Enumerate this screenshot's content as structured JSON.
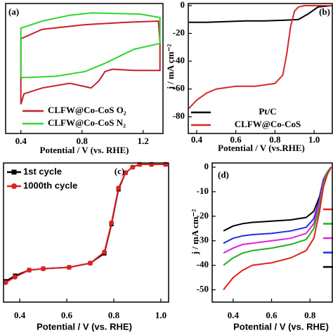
{
  "chart_data": [
    {
      "type": "line",
      "panel_label": "(a)",
      "x_label": "Potential / V (vs. RHE)",
      "xlim": [
        0.3,
        1.33
      ],
      "ylim": [
        -10.8,
        100
      ],
      "xticks": [
        0.4,
        0.8,
        1.2
      ],
      "series": [
        {
          "name": "CLFW@Co-CoS O₂",
          "color": "#c8202a",
          "x": [
            0.4,
            0.4,
            0.4,
            0.54,
            0.82,
            1.09,
            1.3,
            1.31,
            1.31,
            1.14,
            1.0,
            0.95,
            0.91,
            0.86,
            0.79,
            0.72,
            0.54,
            0.42,
            0.4
          ],
          "values": [
            14,
            43,
            70,
            78,
            82,
            84,
            85,
            67,
            43,
            43,
            44,
            42,
            34,
            28,
            30,
            32,
            28,
            23,
            14
          ]
        },
        {
          "name": "CLFW@Co-CoS N₂",
          "color": "#2fd62f",
          "x": [
            0.4,
            0.4,
            0.54,
            0.72,
            0.86,
            1.18,
            1.31,
            1.31,
            1.14,
            0.95,
            0.82,
            0.63,
            0.45,
            0.4
          ],
          "values": [
            37,
            79,
            85,
            90,
            92,
            91,
            88,
            66,
            61,
            49,
            42,
            38,
            37,
            37
          ]
        }
      ]
    },
    {
      "type": "line",
      "panel_label": "(b)",
      "x_label": "Potential / V (vs.RHE)",
      "y_label": "j / mA cm⁻²",
      "xlim": [
        0.357,
        1.093
      ],
      "ylim": [
        -92,
        1.5
      ],
      "xticks": [
        0.4,
        0.6,
        0.8,
        {
          "value": 1,
          "label": "1.0"
        }
      ],
      "yticks": [
        0,
        -20,
        -40,
        -60,
        -80
      ],
      "series": [
        {
          "name": "Pt/C",
          "color": "#000000",
          "x": [
            0.36,
            0.45,
            0.55,
            0.65,
            0.75,
            0.85,
            0.92,
            0.97,
            1.02,
            1.09
          ],
          "values": [
            -12,
            -12,
            -11.5,
            -11,
            -11,
            -10.5,
            -10,
            -6,
            -1,
            0
          ]
        },
        {
          "name": "CLFW@Co-CoS",
          "color": "#d42a2a",
          "x": [
            0.36,
            0.4,
            0.45,
            0.5,
            0.6,
            0.7,
            0.8,
            0.84,
            0.86,
            0.88,
            0.9,
            0.92,
            0.95,
            1.0,
            1.09
          ],
          "values": [
            -74,
            -68,
            -63,
            -60,
            -58,
            -58,
            -56,
            -50,
            -35,
            -15,
            -4,
            -1,
            0,
            0,
            0
          ]
        }
      ]
    },
    {
      "type": "line",
      "panel_label": "(c)",
      "x_label": "Potential / V (vs. RHE)",
      "xlim": [
        0.331,
        1.033
      ],
      "ylim": [
        0,
        100
      ],
      "xticks": [
        0.4,
        0.6,
        0.8,
        {
          "value": 1,
          "label": "1.0"
        }
      ],
      "x": [
        0.34,
        0.38,
        0.44,
        0.5,
        0.61,
        0.7,
        0.76,
        0.79,
        0.82,
        0.85,
        0.88,
        0.91,
        0.96,
        1.02
      ],
      "series": [
        {
          "name": "1st cycle",
          "color": "#000000",
          "marker": "square",
          "values": [
            15,
            19,
            23,
            24,
            25,
            28,
            35,
            56,
            81,
            93,
            97,
            99,
            99,
            99
          ]
        },
        {
          "name": "1000th cycle",
          "color": "#e02020",
          "marker": "circle",
          "values": [
            14,
            18,
            23,
            24,
            25,
            28,
            36,
            57,
            82,
            93,
            97,
            99,
            99,
            99
          ]
        }
      ]
    },
    {
      "type": "line",
      "panel_label": "(d)",
      "x_label": "Potential / V (vs. RHE)",
      "y_label": "j / mA cm⁻²",
      "xlim": [
        0.291,
        0.916
      ],
      "ylim": [
        -55,
        1.7
      ],
      "xticks": [
        0.4,
        0.6,
        0.8
      ],
      "yticks": [
        0,
        -10,
        -20,
        -30,
        -40,
        -50
      ],
      "x": [
        0.35,
        0.4,
        0.45,
        0.5,
        0.6,
        0.7,
        0.78,
        0.82,
        0.85,
        0.87,
        0.89,
        0.91
      ],
      "series": [
        {
          "color": "#000000",
          "values": [
            -26,
            -24,
            -23,
            -22.5,
            -22,
            -21.5,
            -20.5,
            -18,
            -12,
            -5,
            -2,
            0
          ]
        },
        {
          "color": "#1f2fe0",
          "values": [
            -31,
            -29,
            -28,
            -27.5,
            -27,
            -26,
            -24.5,
            -21,
            -13,
            -5,
            -2,
            0
          ]
        },
        {
          "color": "#e020e0",
          "values": [
            -35,
            -33,
            -31.5,
            -31,
            -30,
            -29,
            -27,
            -23,
            -14,
            -6,
            -2,
            0
          ]
        },
        {
          "color": "#20b020",
          "values": [
            -40,
            -37,
            -35,
            -34,
            -33,
            -31.5,
            -29.5,
            -25,
            -16,
            -7,
            -2,
            0
          ]
        },
        {
          "color": "#e02020",
          "values": [
            -50,
            -45,
            -42,
            -40,
            -39,
            -37,
            -34,
            -29,
            -18,
            -8,
            -3,
            0
          ]
        }
      ]
    }
  ]
}
